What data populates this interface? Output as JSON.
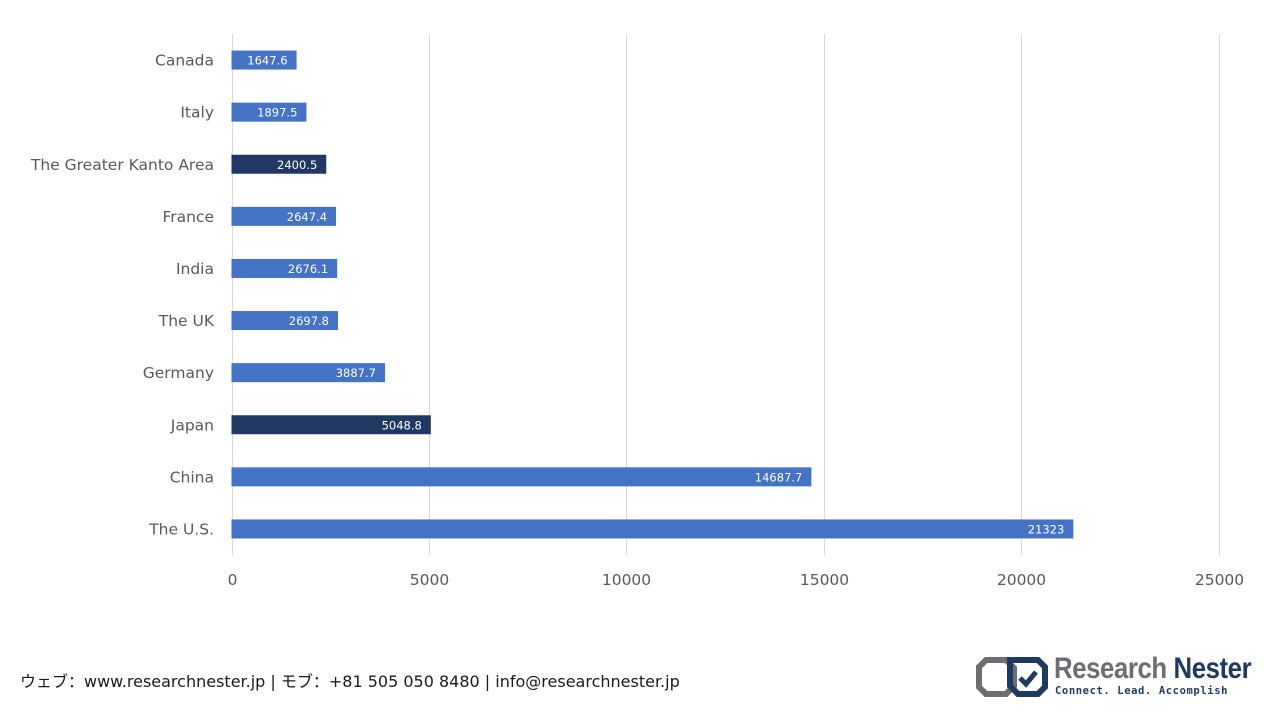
{
  "chart_data": {
    "type": "bar",
    "orientation": "horizontal",
    "categories": [
      "Canada",
      "Italy",
      "The Greater Kanto Area",
      "France",
      "India",
      "The UK",
      "Germany",
      "Japan",
      "China",
      "The U.S."
    ],
    "values": [
      1647.6,
      1897.5,
      2400.5,
      2647.4,
      2676.1,
      2697.8,
      3887.7,
      5048.8,
      14687.7,
      21323
    ],
    "data_labels": [
      "1647.6",
      "1897.5",
      "2400.5",
      "2647.4",
      "2676.1",
      "2697.8",
      "3887.7",
      "5048.8",
      "14687.7",
      "21323"
    ],
    "highlighted": [
      "The Greater Kanto Area",
      "Japan"
    ],
    "xlim": [
      0,
      25000
    ],
    "xticks": [
      0,
      5000,
      10000,
      15000,
      20000,
      25000
    ],
    "grid": "vertical",
    "legend": "none",
    "title": "",
    "xlabel": "",
    "ylabel": ""
  },
  "colors": {
    "bar": "#4472c4",
    "bar_highlight": "#1f3864",
    "grid": "#d9d9d9",
    "text": "#595959"
  },
  "footer": {
    "text": "ウェブ：www.researchnester.jp | モブ：+81 505 050 8480 | info@researchnester.jp"
  },
  "logo": {
    "name_part1": "Research",
    "name_part2": "Nester",
    "tagline": "Connect. Lead. Accomplish"
  }
}
